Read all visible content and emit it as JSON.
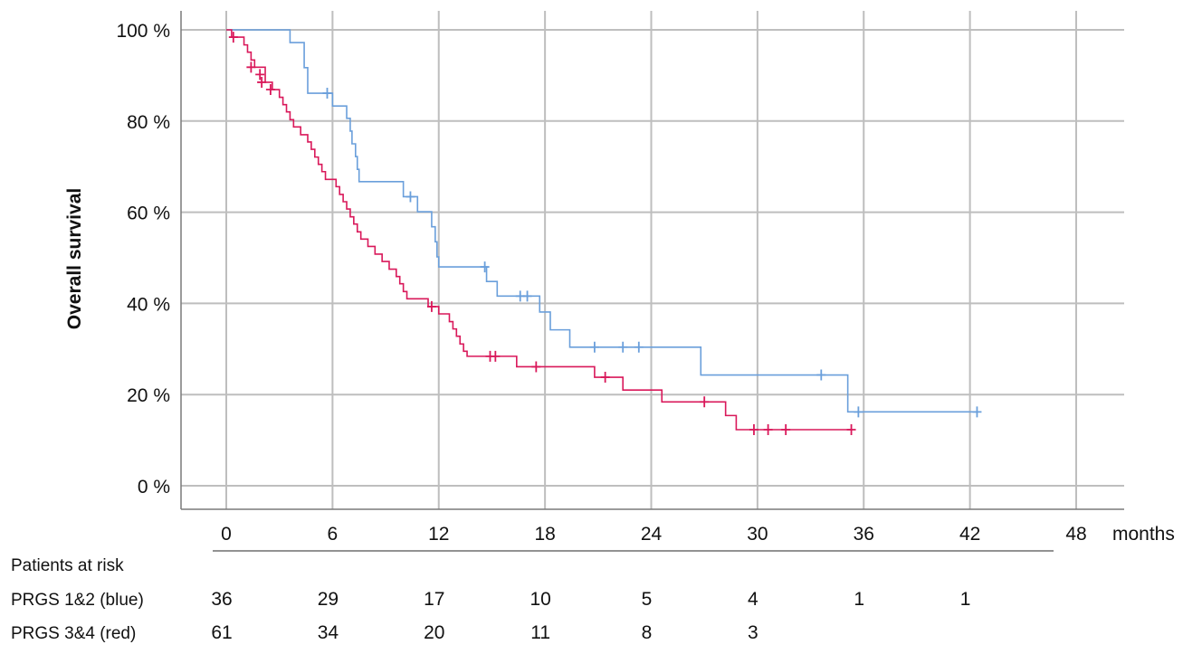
{
  "chart_data": {
    "type": "line",
    "subtype": "kaplan-meier",
    "title": "",
    "xlabel": "months",
    "ylabel": "Overall survival",
    "x_ticks": [
      0,
      6,
      12,
      18,
      24,
      30,
      36,
      42,
      48
    ],
    "y_ticks": [
      "0 %",
      "20 %",
      "40 %",
      "60 %",
      "80 %",
      "100 %"
    ],
    "xlim": [
      -2.5,
      50.7
    ],
    "ylim": [
      0,
      100
    ],
    "grid": true,
    "series": [
      {
        "name": "PRGS 1&2 (blue)",
        "color": "#6A9FDB",
        "steps": [
          [
            0,
            100
          ],
          [
            3.6,
            97.2
          ],
          [
            4.4,
            91.7
          ],
          [
            4.6,
            86.1
          ],
          [
            6.0,
            83.3
          ],
          [
            6.8,
            80.6
          ],
          [
            7.0,
            77.8
          ],
          [
            7.1,
            75.0
          ],
          [
            7.3,
            72.2
          ],
          [
            7.4,
            69.4
          ],
          [
            7.5,
            66.7
          ],
          [
            10.0,
            63.4
          ],
          [
            10.8,
            60.1
          ],
          [
            11.6,
            56.8
          ],
          [
            11.8,
            53.5
          ],
          [
            11.9,
            50.2
          ],
          [
            12.0,
            48.0
          ],
          [
            14.7,
            44.8
          ],
          [
            15.3,
            41.6
          ],
          [
            17.7,
            38.1
          ],
          [
            18.3,
            34.2
          ],
          [
            19.4,
            30.4
          ],
          [
            26.8,
            24.3
          ],
          [
            35.1,
            16.2
          ]
        ],
        "end_time": 42.4,
        "censored": [
          [
            5.7,
            86.1
          ],
          [
            10.4,
            63.4
          ],
          [
            14.6,
            48.0
          ],
          [
            16.6,
            41.6
          ],
          [
            17.0,
            41.6
          ],
          [
            20.8,
            30.4
          ],
          [
            22.4,
            30.4
          ],
          [
            23.3,
            30.4
          ],
          [
            33.6,
            24.3
          ],
          [
            35.7,
            16.2
          ],
          [
            42.4,
            16.2
          ]
        ]
      },
      {
        "name": "PRGS 3&4 (red)",
        "color": "#D9185A",
        "steps": [
          [
            0,
            100
          ],
          [
            0.3,
            98.4
          ],
          [
            1.0,
            96.7
          ],
          [
            1.2,
            95.1
          ],
          [
            1.4,
            93.4
          ],
          [
            1.6,
            91.8
          ],
          [
            2.2,
            88.5
          ],
          [
            2.6,
            86.9
          ],
          [
            3.0,
            85.2
          ],
          [
            3.2,
            83.6
          ],
          [
            3.4,
            82.0
          ],
          [
            3.6,
            80.3
          ],
          [
            3.8,
            78.7
          ],
          [
            4.2,
            77.0
          ],
          [
            4.6,
            75.4
          ],
          [
            4.8,
            73.8
          ],
          [
            5.0,
            72.1
          ],
          [
            5.2,
            70.5
          ],
          [
            5.4,
            68.9
          ],
          [
            5.6,
            67.2
          ],
          [
            6.2,
            65.6
          ],
          [
            6.4,
            63.9
          ],
          [
            6.6,
            62.3
          ],
          [
            6.8,
            60.7
          ],
          [
            7.0,
            59.0
          ],
          [
            7.2,
            57.4
          ],
          [
            7.4,
            55.7
          ],
          [
            7.6,
            54.1
          ],
          [
            8.0,
            52.5
          ],
          [
            8.4,
            50.8
          ],
          [
            8.8,
            49.2
          ],
          [
            9.2,
            47.5
          ],
          [
            9.6,
            45.9
          ],
          [
            9.8,
            44.3
          ],
          [
            10.0,
            42.6
          ],
          [
            10.2,
            41.0
          ],
          [
            11.4,
            39.3
          ],
          [
            12.0,
            37.7
          ],
          [
            12.6,
            36.0
          ],
          [
            12.8,
            34.4
          ],
          [
            13.0,
            32.8
          ],
          [
            13.2,
            31.1
          ],
          [
            13.4,
            29.5
          ],
          [
            13.6,
            28.4
          ],
          [
            16.4,
            26.1
          ],
          [
            20.8,
            23.8
          ],
          [
            22.4,
            21.0
          ],
          [
            24.6,
            18.4
          ],
          [
            28.2,
            15.4
          ],
          [
            28.8,
            12.3
          ]
        ],
        "end_time": 35.3,
        "censored": [
          [
            0.4,
            98.4
          ],
          [
            1.4,
            91.8
          ],
          [
            1.9,
            90.2
          ],
          [
            2.0,
            88.5
          ],
          [
            2.5,
            86.9
          ],
          [
            11.6,
            39.3
          ],
          [
            14.9,
            28.4
          ],
          [
            15.2,
            28.4
          ],
          [
            17.5,
            26.1
          ],
          [
            21.4,
            23.8
          ],
          [
            27.0,
            18.4
          ],
          [
            29.8,
            12.3
          ],
          [
            30.6,
            12.3
          ],
          [
            31.6,
            12.3
          ],
          [
            35.3,
            12.3
          ]
        ]
      }
    ],
    "at_risk_table": {
      "title": "Patients at risk",
      "times": [
        0,
        6,
        12,
        18,
        24,
        30,
        36,
        42
      ],
      "rows": [
        {
          "label": "PRGS 1&2 (blue)",
          "values": [
            36,
            29,
            17,
            10,
            5,
            4,
            1,
            1
          ]
        },
        {
          "label": "PRGS 3&4 (red)",
          "values": [
            61,
            34,
            20,
            11,
            8,
            3
          ]
        }
      ]
    }
  },
  "labels": {
    "ylabel": "Overall survival",
    "xunit": "months",
    "risk_title": "Patients at risk",
    "risk_row_blue": "PRGS 1&2 (blue)",
    "risk_row_red": "PRGS 3&4 (red)"
  },
  "colors": {
    "blue": "#6A9FDB",
    "red": "#D9185A",
    "grid": "#BEBEBE",
    "axis": "#7A7A7A"
  }
}
